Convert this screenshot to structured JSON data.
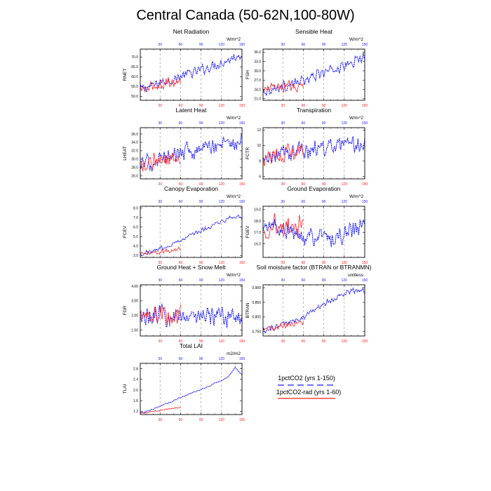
{
  "title": "Central Canada (50-62N,100-80W)",
  "colors": {
    "blue": "#1a1aff",
    "red": "#ff2020",
    "grid": "#9a9a9a"
  },
  "legend": {
    "items": [
      {
        "label": "1pctCO2 (yrs 1-150)",
        "color": "#1a1aff",
        "dashed": true
      },
      {
        "label": "1pctCO2-rad (yrs 1-60)",
        "color": "#ff2020",
        "dashed": false
      }
    ]
  },
  "chart_data": [
    {
      "type": "line",
      "title": "Net Radiation",
      "ylabel": "RNET",
      "units": "W/m^2",
      "xlim": [
        1,
        150
      ],
      "xticks": [
        30,
        60,
        90,
        120,
        150
      ],
      "ylim": [
        48,
        74
      ],
      "yticks": [
        50.0,
        55.0,
        60.0,
        65.0,
        70.0
      ],
      "ytick_labels": [
        "50.0",
        "55.0",
        "60.0",
        "65.0",
        "70.0"
      ],
      "grid": "vertical dashed at 30, 60, 90, 120",
      "series": [
        {
          "x": [
            1,
            10,
            20,
            30,
            40,
            50,
            60,
            70,
            80,
            90,
            100,
            110,
            120,
            130,
            140,
            150
          ],
          "values": [
            53.5,
            54.5,
            55.5,
            57,
            58,
            58.5,
            60,
            61.5,
            62,
            63.5,
            64.5,
            66,
            67,
            68.5,
            70,
            72
          ]
        },
        {
          "x": [
            1,
            10,
            20,
            30,
            40,
            50,
            60
          ],
          "values": [
            53,
            54,
            55,
            56,
            57,
            57,
            57.5
          ]
        }
      ]
    },
    {
      "type": "line",
      "title": "Sensible Heat",
      "ylabel": "FSH",
      "units": "W/m^2",
      "xlim": [
        1,
        150
      ],
      "xticks": [
        30,
        60,
        90,
        120,
        150
      ],
      "ylim": [
        20.5,
        37
      ],
      "yticks": [
        21.0,
        24.0,
        27.0,
        30.0,
        33.0,
        36.0
      ],
      "ytick_labels": [
        "21.0",
        "24.0",
        "27.0",
        "30.0",
        "33.0",
        "36.0"
      ],
      "grid": "vertical dashed at 30, 60, 90, 120",
      "series": [
        {
          "x": [
            1,
            10,
            20,
            30,
            40,
            50,
            60,
            70,
            80,
            90,
            100,
            110,
            120,
            130,
            140,
            150
          ],
          "values": [
            23.5,
            24,
            24.5,
            25,
            25.5,
            26,
            27,
            27.5,
            28.5,
            29.5,
            30,
            31,
            31.5,
            32.5,
            33.5,
            34.5
          ]
        },
        {
          "x": [
            1,
            10,
            20,
            30,
            40,
            50,
            60
          ],
          "values": [
            23.5,
            24,
            24.5,
            24.5,
            25,
            25,
            24.5
          ]
        }
      ]
    },
    {
      "type": "line",
      "title": "Latent Heat",
      "ylabel": "LHEAT",
      "units": "W/m^2",
      "xlim": [
        1,
        150
      ],
      "xticks": [
        30,
        60,
        90,
        120,
        150
      ],
      "ylim": [
        25.3,
        37.5
      ],
      "yticks": [
        26.0,
        28.0,
        30.0,
        32.0,
        34.0,
        36.0
      ],
      "ytick_labels": [
        "26.0",
        "28.0",
        "30.0",
        "32.0",
        "34.0",
        "36.0"
      ],
      "grid": "vertical dashed at 30, 60, 90, 120",
      "series": [
        {
          "x": [
            1,
            10,
            20,
            30,
            40,
            50,
            60,
            70,
            80,
            90,
            100,
            110,
            120,
            130,
            140,
            150
          ],
          "values": [
            28.5,
            29,
            29.5,
            30,
            30.5,
            31,
            31.5,
            32,
            32,
            32.5,
            33,
            33,
            33.5,
            34,
            34,
            34.5
          ]
        },
        {
          "x": [
            1,
            10,
            20,
            30,
            40,
            50,
            60
          ],
          "values": [
            28.5,
            29,
            29.5,
            30,
            30.5,
            31,
            31
          ]
        }
      ]
    },
    {
      "type": "line",
      "title": "Transpiration",
      "ylabel": "FCTR",
      "units": "W/m^2",
      "xlim": [
        1,
        150
      ],
      "xticks": [
        30,
        60,
        90,
        120,
        150
      ],
      "ylim": [
        5.7,
        12.3
      ],
      "yticks": [
        6,
        8,
        10,
        12
      ],
      "ytick_labels": [
        "6",
        "8",
        "10",
        "12"
      ],
      "grid": "vertical dashed at 30, 60, 90, 120",
      "series": [
        {
          "x": [
            1,
            10,
            20,
            30,
            40,
            50,
            60,
            70,
            80,
            90,
            100,
            110,
            120,
            130,
            140,
            150
          ],
          "values": [
            8,
            8.3,
            8.6,
            8.9,
            9.1,
            9.3,
            9.4,
            9.5,
            9.6,
            9.7,
            9.8,
            9.8,
            9.9,
            9.9,
            10,
            10
          ]
        },
        {
          "x": [
            1,
            10,
            20,
            30,
            40,
            50,
            60
          ],
          "values": [
            8,
            8.4,
            8.8,
            9,
            9.2,
            9.3,
            9.5
          ]
        }
      ]
    },
    {
      "type": "line",
      "title": "Canopy Evaporation",
      "ylabel": "FCEV",
      "units": "W/m^2",
      "xlim": [
        1,
        150
      ],
      "xticks": [
        30,
        60,
        90,
        120,
        150
      ],
      "ylim": [
        2.8,
        8.2
      ],
      "yticks": [
        3.0,
        4.0,
        5.0,
        6.0,
        7.0,
        8.0
      ],
      "ytick_labels": [
        "3.0",
        "4.0",
        "5.0",
        "6.0",
        "7.0",
        "8.0"
      ],
      "grid": "vertical dashed at 30, 60, 90, 120",
      "series": [
        {
          "x": [
            1,
            10,
            20,
            30,
            40,
            50,
            60,
            70,
            80,
            90,
            100,
            110,
            120,
            130,
            140,
            150
          ],
          "values": [
            3.2,
            3.3,
            3.5,
            3.8,
            4.0,
            4.3,
            4.6,
            5.0,
            5.3,
            5.6,
            5.9,
            6.2,
            6.5,
            6.8,
            7.2,
            7.0
          ]
        },
        {
          "x": [
            1,
            10,
            20,
            30,
            40,
            50,
            60
          ],
          "values": [
            3.1,
            3.2,
            3.3,
            3.4,
            3.5,
            3.6,
            3.7
          ]
        }
      ]
    },
    {
      "type": "line",
      "title": "Ground Evaporation",
      "ylabel": "FGEV",
      "units": "W/m^2",
      "xlim": [
        1,
        150
      ],
      "xticks": [
        30,
        60,
        90,
        120,
        150
      ],
      "ylim": [
        14.8,
        19.3
      ],
      "yticks": [
        16.0,
        17.0,
        18.0,
        19.0
      ],
      "ytick_labels": [
        "16.0",
        "17.0",
        "18.0",
        "19.0"
      ],
      "grid": "vertical dashed at 30, 60, 90, 120",
      "series": [
        {
          "x": [
            1,
            10,
            20,
            30,
            40,
            50,
            60,
            70,
            80,
            90,
            100,
            110,
            120,
            130,
            140,
            150
          ],
          "values": [
            17,
            17.5,
            17.5,
            17,
            17,
            16.8,
            16.7,
            16.6,
            16.5,
            16.5,
            16.5,
            16.6,
            16.8,
            17,
            17.3,
            17.8
          ]
        },
        {
          "x": [
            1,
            10,
            20,
            30,
            40,
            50,
            60
          ],
          "values": [
            17.2,
            17.5,
            17.8,
            17.5,
            17.4,
            17.5,
            17.4
          ]
        }
      ]
    },
    {
      "type": "line",
      "title": "Ground Heat + Snow Melt",
      "ylabel": "FGR",
      "units": "W/m^2",
      "xlim": [
        1,
        150
      ],
      "xticks": [
        30,
        60,
        90,
        120,
        150
      ],
      "ylim": [
        0.6,
        4.1
      ],
      "yticks": [
        1.0,
        2.0,
        3.0,
        4.0
      ],
      "ytick_labels": [
        "1.00",
        "2.00",
        "3.00",
        "4.00"
      ],
      "grid": "vertical dashed at 30, 60, 90, 120",
      "series": [
        {
          "x": [
            1,
            10,
            20,
            30,
            40,
            50,
            60,
            70,
            80,
            90,
            100,
            110,
            120,
            130,
            140,
            150
          ],
          "values": [
            1.9,
            1.9,
            1.9,
            2.0,
            2.0,
            2.0,
            2.0,
            1.9,
            1.9,
            2.0,
            2.0,
            1.9,
            1.9,
            2.0,
            1.9,
            1.9
          ]
        },
        {
          "x": [
            1,
            10,
            20,
            30,
            40,
            50,
            60
          ],
          "values": [
            1.8,
            1.9,
            2.0,
            1.9,
            2.0,
            1.9,
            2.0
          ]
        }
      ]
    },
    {
      "type": "line",
      "title": "Soil moisture factor (BTRAN or BTRANMN)",
      "ylabel": "BTRAN",
      "units": "unitless",
      "xlim": [
        1,
        150
      ],
      "xticks": [
        30,
        60,
        90,
        120,
        150
      ],
      "ylim": [
        0.735,
        0.91
      ],
      "yticks": [
        0.75,
        0.8,
        0.85,
        0.9
      ],
      "ytick_labels": [
        "0.750",
        "0.800",
        "0.850",
        "0.900"
      ],
      "grid": "vertical dashed at 30, 60, 90, 120",
      "series": [
        {
          "x": [
            1,
            10,
            20,
            30,
            40,
            50,
            60,
            70,
            80,
            90,
            100,
            110,
            120,
            130,
            140,
            150
          ],
          "values": [
            0.755,
            0.76,
            0.765,
            0.775,
            0.78,
            0.79,
            0.8,
            0.815,
            0.83,
            0.845,
            0.855,
            0.87,
            0.88,
            0.89,
            0.895,
            0.89
          ]
        },
        {
          "x": [
            1,
            10,
            20,
            30,
            40,
            50,
            60
          ],
          "values": [
            0.755,
            0.76,
            0.765,
            0.77,
            0.775,
            0.78,
            0.785
          ]
        }
      ]
    },
    {
      "type": "line",
      "title": "Total LAI",
      "ylabel": "TLAI",
      "units": "m2/m2",
      "xlim": [
        1,
        150
      ],
      "xticks": [
        30,
        60,
        90,
        120,
        150
      ],
      "ylim": [
        1.08,
        3.0
      ],
      "yticks": [
        1.2,
        1.6,
        2.0,
        2.4,
        2.8
      ],
      "ytick_labels": [
        "1.2",
        "1.6",
        "2.0",
        "2.4",
        "2.8"
      ],
      "grid": "vertical dashed at 30, 60, 90, 120",
      "series": [
        {
          "x": [
            1,
            10,
            20,
            30,
            40,
            50,
            60,
            70,
            80,
            90,
            100,
            110,
            120,
            130,
            140,
            150
          ],
          "values": [
            1.15,
            1.2,
            1.28,
            1.4,
            1.5,
            1.6,
            1.72,
            1.82,
            1.92,
            2.02,
            2.12,
            2.25,
            2.35,
            2.5,
            2.85,
            2.55
          ]
        },
        {
          "x": [
            1,
            10,
            20,
            30,
            40,
            50,
            60
          ],
          "values": [
            1.12,
            1.15,
            1.2,
            1.24,
            1.28,
            1.31,
            1.34
          ]
        }
      ]
    }
  ]
}
